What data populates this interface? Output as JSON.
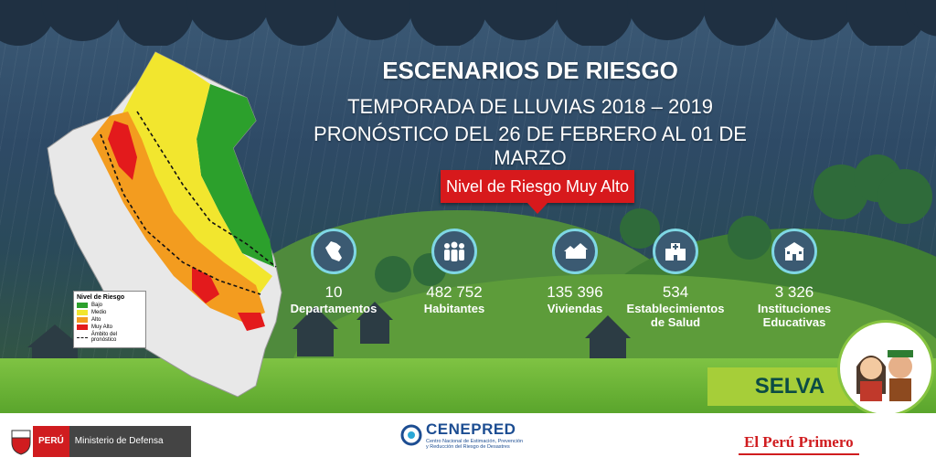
{
  "header": {
    "title": "ESCENARIOS DE RIESGO",
    "subtitle": "TEMPORADA DE LLUVIAS 2018 – 2019",
    "forecast": "PRONÓSTICO DEL 26 DE FEBRERO AL 01 DE MARZO"
  },
  "risk_level": "Nivel de Riesgo Muy Alto",
  "stats": [
    {
      "icon": "peru-map-icon",
      "value": "10",
      "label_lines": [
        "Departamentos"
      ]
    },
    {
      "icon": "people-icon",
      "value": "482 752",
      "label_lines": [
        "Habitantes"
      ]
    },
    {
      "icon": "houses-icon",
      "value": "135 396",
      "label_lines": [
        "Viviendas"
      ]
    },
    {
      "icon": "hospital-icon",
      "value": "534",
      "label_lines": [
        "Establecimientos",
        "de Salud"
      ]
    },
    {
      "icon": "school-icon",
      "value": "3 326",
      "label_lines": [
        "Instituciones",
        "Educativas"
      ]
    }
  ],
  "legend": {
    "title": "Nivel de Riesgo",
    "items": [
      {
        "label": "Bajo",
        "color": "#2ca02c"
      },
      {
        "label": "Medio",
        "color": "#f2e62e"
      },
      {
        "label": "Alto",
        "color": "#f39c1f"
      },
      {
        "label": "Muy Alto",
        "color": "#e31a1c"
      }
    ],
    "note": "Ámbito del pronóstico"
  },
  "region": "SELVA",
  "footer": {
    "peru": "PERÚ",
    "ministry": "Ministerio de Defensa",
    "cenepred": "CENEPRED",
    "cenepred_sub": "Centro Nacional de Estimación, Prevención y Reducción del Riesgo de Desastres",
    "slogan": "El Perú Primero"
  },
  "colors": {
    "accent_red": "#d7191c",
    "icon_ring": "#7fd7e4",
    "selva_green": "#a6ce39"
  }
}
